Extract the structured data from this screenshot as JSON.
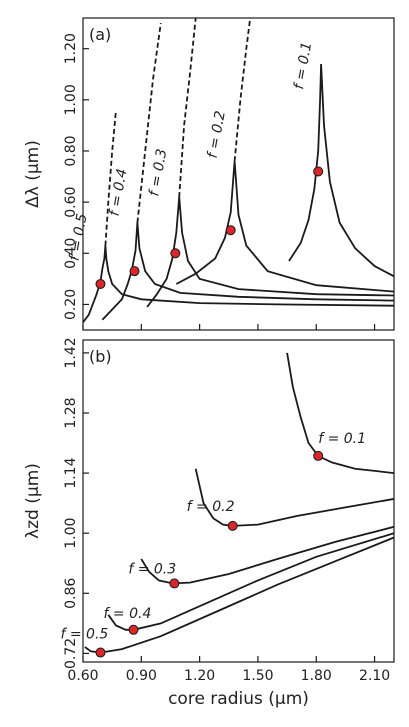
{
  "chart_data": [
    {
      "type": "line",
      "panel_label": "(a)",
      "ylabel": "Δλ (μm)",
      "xlim": [
        0.6,
        2.2
      ],
      "ylim": [
        0.1,
        1.32
      ],
      "x_ticks": [
        "0.60",
        "0.90",
        "1.20",
        "1.50",
        "1.80",
        "2.10"
      ],
      "y_ticks": [
        "0.20",
        "0.40",
        "0.60",
        "0.80",
        "1.00",
        "1.20"
      ],
      "series": [
        {
          "label": "f = 0.5",
          "points": [
            [
              0.6,
              0.13
            ],
            [
              0.63,
              0.16
            ],
            [
              0.65,
              0.2
            ],
            [
              0.67,
              0.24
            ],
            [
              0.69,
              0.29
            ],
            [
              0.7,
              0.34
            ],
            [
              0.71,
              0.38
            ],
            [
              0.715,
              0.43
            ],
            [
              0.72,
              0.38
            ],
            [
              0.73,
              0.33
            ],
            [
              0.75,
              0.28
            ],
            [
              0.8,
              0.24
            ],
            [
              0.9,
              0.22
            ],
            [
              1.2,
              0.205
            ],
            [
              1.6,
              0.2
            ],
            [
              2.2,
              0.195
            ]
          ],
          "dashed": [
            [
              0.715,
              0.43
            ],
            [
              0.73,
              0.6
            ],
            [
              0.75,
              0.8
            ],
            [
              0.77,
              0.96
            ]
          ],
          "marker": [
            0.69,
            0.28
          ]
        },
        {
          "label": "f = 0.4",
          "points": [
            [
              0.7,
              0.14
            ],
            [
              0.75,
              0.18
            ],
            [
              0.8,
              0.22
            ],
            [
              0.83,
              0.28
            ],
            [
              0.85,
              0.33
            ],
            [
              0.87,
              0.41
            ],
            [
              0.88,
              0.52
            ],
            [
              0.89,
              0.42
            ],
            [
              0.92,
              0.33
            ],
            [
              0.97,
              0.28
            ],
            [
              1.1,
              0.245
            ],
            [
              1.4,
              0.23
            ],
            [
              1.8,
              0.22
            ],
            [
              2.2,
              0.215
            ]
          ],
          "dashed": [
            [
              0.88,
              0.52
            ],
            [
              0.92,
              0.8
            ],
            [
              0.96,
              1.08
            ],
            [
              1.0,
              1.3
            ]
          ],
          "marker": [
            0.865,
            0.33
          ]
        },
        {
          "label": "f = 0.3",
          "points": [
            [
              0.93,
              0.19
            ],
            [
              0.98,
              0.24
            ],
            [
              1.03,
              0.3
            ],
            [
              1.06,
              0.38
            ],
            [
              1.08,
              0.48
            ],
            [
              1.095,
              0.62
            ],
            [
              1.11,
              0.48
            ],
            [
              1.14,
              0.37
            ],
            [
              1.2,
              0.3
            ],
            [
              1.4,
              0.26
            ],
            [
              1.8,
              0.24
            ],
            [
              2.2,
              0.235
            ]
          ],
          "dashed": [
            [
              1.095,
              0.62
            ],
            [
              1.12,
              0.9
            ],
            [
              1.15,
              1.1
            ],
            [
              1.18,
              1.32
            ]
          ],
          "marker": [
            1.075,
            0.4
          ]
        },
        {
          "label": "f = 0.2",
          "points": [
            [
              1.08,
              0.28
            ],
            [
              1.18,
              0.32
            ],
            [
              1.28,
              0.38
            ],
            [
              1.33,
              0.46
            ],
            [
              1.36,
              0.56
            ],
            [
              1.38,
              0.76
            ],
            [
              1.4,
              0.55
            ],
            [
              1.44,
              0.43
            ],
            [
              1.55,
              0.33
            ],
            [
              1.8,
              0.275
            ],
            [
              2.2,
              0.25
            ]
          ],
          "dashed": [
            [
              1.38,
              0.76
            ],
            [
              1.41,
              1.0
            ],
            [
              1.44,
              1.2
            ],
            [
              1.46,
              1.32
            ]
          ],
          "marker": [
            1.36,
            0.49
          ]
        },
        {
          "label": "f = 0.1",
          "points": [
            [
              1.66,
              0.37
            ],
            [
              1.72,
              0.44
            ],
            [
              1.76,
              0.53
            ],
            [
              1.79,
              0.65
            ],
            [
              1.81,
              0.8
            ],
            [
              1.82,
              1.0
            ],
            [
              1.825,
              1.14
            ],
            [
              1.84,
              0.9
            ],
            [
              1.87,
              0.68
            ],
            [
              1.92,
              0.52
            ],
            [
              2.0,
              0.42
            ],
            [
              2.1,
              0.35
            ],
            [
              2.2,
              0.31
            ]
          ],
          "marker": [
            1.81,
            0.72
          ]
        }
      ]
    },
    {
      "type": "line",
      "panel_label": "(b)",
      "ylabel": "λzd (μm)",
      "xlabel": "core radius (μm)",
      "xlim": [
        0.6,
        2.2
      ],
      "ylim": [
        0.7,
        1.45
      ],
      "x_ticks": [
        "0.60",
        "0.90",
        "1.20",
        "1.50",
        "1.80",
        "2.10"
      ],
      "y_ticks": [
        "0.72",
        "0.86",
        "1.00",
        "1.14",
        "1.28",
        "1.42"
      ],
      "series": [
        {
          "label": "f = 0.5",
          "points": [
            [
              0.61,
              0.735
            ],
            [
              0.64,
              0.725
            ],
            [
              0.69,
              0.722
            ],
            [
              0.8,
              0.73
            ],
            [
              1.0,
              0.76
            ],
            [
              1.3,
              0.82
            ],
            [
              1.6,
              0.88
            ],
            [
              1.9,
              0.935
            ],
            [
              2.2,
              0.99
            ]
          ],
          "marker": [
            0.69,
            0.722
          ]
        },
        {
          "label": "f = 0.4",
          "points": [
            [
              0.73,
              0.81
            ],
            [
              0.77,
              0.785
            ],
            [
              0.82,
              0.775
            ],
            [
              0.86,
              0.775
            ],
            [
              1.0,
              0.79
            ],
            [
              1.2,
              0.83
            ],
            [
              1.5,
              0.89
            ],
            [
              1.8,
              0.945
            ],
            [
              2.2,
              1.0
            ]
          ],
          "marker": [
            0.86,
            0.775
          ]
        },
        {
          "label": "f = 0.3",
          "points": [
            [
              0.9,
              0.94
            ],
            [
              0.94,
              0.91
            ],
            [
              0.99,
              0.89
            ],
            [
              1.06,
              0.883
            ],
            [
              1.15,
              0.885
            ],
            [
              1.35,
              0.905
            ],
            [
              1.6,
              0.94
            ],
            [
              1.9,
              0.98
            ],
            [
              2.2,
              1.015
            ]
          ],
          "marker": [
            1.07,
            0.883
          ]
        },
        {
          "label": "f = 0.2",
          "points": [
            [
              1.18,
              1.15
            ],
            [
              1.22,
              1.07
            ],
            [
              1.27,
              1.035
            ],
            [
              1.32,
              1.02
            ],
            [
              1.37,
              1.017
            ],
            [
              1.5,
              1.02
            ],
            [
              1.7,
              1.04
            ],
            [
              1.95,
              1.06
            ],
            [
              2.2,
              1.08
            ]
          ],
          "marker": [
            1.37,
            1.017
          ]
        },
        {
          "label": "f = 0.1",
          "points": [
            [
              1.65,
              1.42
            ],
            [
              1.68,
              1.34
            ],
            [
              1.72,
              1.27
            ],
            [
              1.76,
              1.21
            ],
            [
              1.81,
              1.18
            ],
            [
              1.88,
              1.165
            ],
            [
              2.0,
              1.15
            ],
            [
              2.1,
              1.145
            ],
            [
              2.2,
              1.14
            ]
          ],
          "marker": [
            1.81,
            1.18
          ]
        }
      ]
    }
  ]
}
